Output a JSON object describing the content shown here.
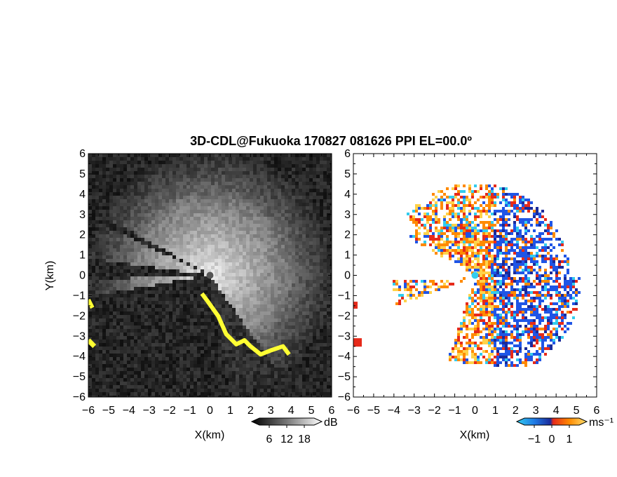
{
  "title": "3D-CDL@Fukuoka 170827 081626 PPI EL=00.0º",
  "colors": {
    "background": "#ffffff",
    "clutter": "#ffff33",
    "vel_cyan": "#33ccee",
    "vel_blue": "#1f55e6",
    "vel_navy": "#1a2a9a",
    "vel_red": "#e62a1a",
    "vel_orange": "#ff8a00",
    "vel_yellow": "#ffd24a"
  },
  "chart_data": [
    {
      "name": "snr",
      "type": "heatmap",
      "xlabel": "X(km)",
      "ylabel": "Y(km)",
      "xlim": [
        -6,
        6
      ],
      "ylim": [
        -6,
        6
      ],
      "xticks": [
        "−6",
        "−5",
        "−4",
        "−3",
        "−2",
        "−1",
        "0",
        "1",
        "2",
        "3",
        "4",
        "5",
        "6"
      ],
      "yticks": [
        "6",
        "5",
        "4",
        "3",
        "2",
        "1",
        "0",
        "−1",
        "−2",
        "−3",
        "−4",
        "−5",
        "−6"
      ],
      "colorbar": {
        "unit": "dB",
        "tick_labels": [
          "6",
          "12",
          "18"
        ],
        "tick_values": [
          6,
          12,
          18
        ],
        "range": [
          0,
          24
        ],
        "palette": "black-to-white grayscale"
      },
      "radar_origin_km": [
        0,
        0
      ],
      "blocked_sectors_deg": [
        [
          172,
          182
        ],
        [
          202,
          268
        ],
        [
          151,
          155
        ]
      ],
      "bright_sector_deg": [
        -80,
        200
      ],
      "max_range_km": 6
    },
    {
      "name": "velocity",
      "type": "heatmap",
      "xlabel": "X(km)",
      "ylabel": "Y(km)",
      "xlim": [
        -6,
        6
      ],
      "ylim": [
        -6,
        6
      ],
      "xticks": [
        "−6",
        "−5",
        "−4",
        "−3",
        "−2",
        "−1",
        "0",
        "1",
        "2",
        "3",
        "4",
        "5",
        "6"
      ],
      "yticks": [
        "6",
        "5",
        "4",
        "3",
        "2",
        "1",
        "0",
        "−1",
        "−2",
        "−3",
        "−4",
        "−5",
        "−6"
      ],
      "colorbar": {
        "unit": "ms⁻¹",
        "tick_labels": [
          "−1",
          "0",
          "1"
        ],
        "tick_values": [
          -1,
          0,
          1
        ],
        "range": [
          -2,
          2
        ],
        "palette": "cyan-blue-red-orange-yellow"
      },
      "data_extent_km": {
        "x": [
          -4.5,
          5.1
        ],
        "y": [
          -4.5,
          4.2
        ]
      }
    }
  ]
}
